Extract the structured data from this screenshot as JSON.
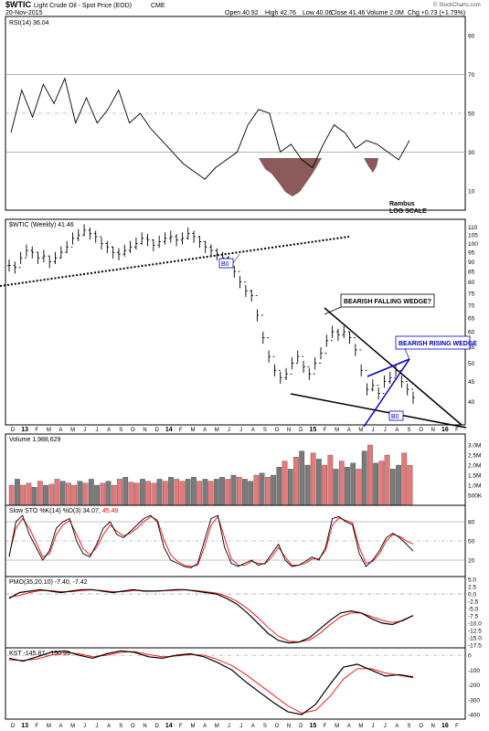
{
  "header": {
    "symbol": "$WTIC",
    "name": "Light Crude Oil - Spot Price (EOD)",
    "exchange": "CME",
    "date": "20-Nov-2015",
    "open": "Open 40.92",
    "high": "High 42.76",
    "low": "Low 40.06",
    "close": "Close 41.46",
    "volume": "Volume 2.0M",
    "change": "Chg +0.73 (+1.79%)",
    "credit": "© StockCharts.com"
  },
  "colors": {
    "accent_blue": "#0000cc",
    "signal_red": "#ff0000",
    "up_volume": "#e6787a",
    "down_volume": "#7a7a7a",
    "rsi_fill": "#8b5a5a",
    "grid": "#999999"
  },
  "chart_data": [
    {
      "type": "line",
      "panel": "rsi",
      "title": "RSI(14) 36.04",
      "y_ticks": [
        90,
        70,
        50,
        30,
        10
      ],
      "ylim": [
        0,
        100
      ],
      "reference_lines": [
        70,
        50,
        30
      ],
      "annotation": [
        "Rambus",
        "LOG SCALE"
      ],
      "x": [
        0,
        4,
        8,
        12,
        16,
        20,
        24,
        28,
        32,
        36,
        40,
        44,
        48,
        52,
        56,
        60,
        64,
        68,
        72,
        76,
        80,
        84,
        88,
        92,
        96,
        100,
        104,
        108,
        112,
        116,
        120,
        124,
        128,
        132,
        136,
        140,
        144,
        148
      ],
      "values": [
        40,
        62,
        48,
        65,
        55,
        68,
        45,
        58,
        45,
        52,
        62,
        45,
        50,
        42,
        36,
        30,
        24,
        20,
        16,
        22,
        26,
        30,
        44,
        52,
        50,
        30,
        34,
        26,
        22,
        34,
        44,
        40,
        32,
        36,
        34,
        30,
        26,
        36
      ]
    },
    {
      "type": "ohlc",
      "panel": "price",
      "title": "$WTIC (Weekly) 41.46",
      "scale": "log",
      "y_ticks": [
        110,
        105,
        100,
        95,
        90,
        85,
        80,
        75,
        70,
        65,
        60,
        55,
        50,
        45,
        40
      ],
      "ylim": [
        35,
        115
      ],
      "x_ticks": [
        "D",
        "13",
        "F",
        "M",
        "A",
        "M",
        "J",
        "J",
        "A",
        "S",
        "O",
        "N",
        "D",
        "14",
        "F",
        "M",
        "A",
        "M",
        "J",
        "J",
        "A",
        "S",
        "O",
        "N",
        "D",
        "15",
        "F",
        "M",
        "A",
        "M",
        "J",
        "J",
        "A",
        "S",
        "O",
        "N",
        "16",
        "F"
      ],
      "close": [
        88,
        87,
        92,
        96,
        95,
        92,
        93,
        90,
        92,
        95,
        98,
        103,
        105,
        108,
        106,
        104,
        100,
        98,
        95,
        94,
        96,
        98,
        100,
        103,
        102,
        99,
        101,
        103,
        104,
        102,
        103,
        106,
        104,
        101,
        98,
        96,
        94,
        92,
        90,
        85,
        80,
        76,
        74,
        66,
        58,
        52,
        48,
        46,
        47,
        50,
        52,
        49,
        47,
        50,
        53,
        57,
        60,
        59,
        60,
        58,
        54,
        48,
        43,
        44,
        42,
        45,
        46,
        48,
        45,
        43,
        41
      ],
      "annotations": [
        {
          "text": "B0",
          "color": "#0000cc"
        },
        {
          "text": "BEARISH FALLING WEDGE?",
          "color": "#000000"
        },
        {
          "text": "BEARISH RISING WEDGE",
          "color": "#0000cc"
        },
        {
          "text": "B0",
          "color": "#0000cc"
        }
      ]
    },
    {
      "type": "bar",
      "panel": "volume",
      "title": "Volume 1,988,629",
      "y_ticks": [
        "3.0M",
        "2.5M",
        "2.0M",
        "1.5M",
        "1.0M",
        "500K"
      ],
      "ylim": [
        0,
        3000000
      ],
      "values": [
        1000000,
        1300000,
        1000000,
        1100000,
        900000,
        1200000,
        1000000,
        1050000,
        1300000,
        1200000,
        1100000,
        1000000,
        1200000,
        1100000,
        1300000,
        1000000,
        1100000,
        1200000,
        1000000,
        1300000,
        1400000,
        1150000,
        1100000,
        1300000,
        1200000,
        1100000,
        1300000,
        1200000,
        1400000,
        1300000,
        1200000,
        1300000,
        1400000,
        1200000,
        1300000,
        1200000,
        1300000,
        1400000,
        1300000,
        1500000,
        1400000,
        1300000,
        1200000,
        1500000,
        1600000,
        1400000,
        1500000,
        1900000,
        2200000,
        1800000,
        2400000,
        2700000,
        2000000,
        2600000,
        2300000,
        2000000,
        2500000,
        1800000,
        2200000,
        1900000,
        2100000,
        1800000,
        2700000,
        3000000,
        2100000,
        2200000,
        2500000,
        1800000,
        2000000,
        2600000,
        1990000
      ],
      "up": [
        true,
        false,
        true,
        true,
        false,
        true,
        false,
        true,
        true,
        false,
        true,
        true,
        false,
        true,
        false,
        false,
        true,
        false,
        true,
        true,
        false,
        true,
        true,
        false,
        true,
        true,
        false,
        true,
        false,
        true,
        true,
        false,
        false,
        true,
        false,
        true,
        false,
        false,
        true,
        false,
        true,
        false,
        false,
        true,
        false,
        true,
        false,
        false,
        true,
        false,
        true,
        false,
        false,
        true,
        false,
        true,
        true,
        false,
        true,
        false,
        false,
        true,
        false,
        true,
        false,
        true,
        true,
        false,
        false,
        true,
        true
      ]
    },
    {
      "type": "line",
      "panel": "sto",
      "title": "Slow STO %K(14) %D(3) 34.07, 45.48",
      "y_ticks": [
        80,
        50,
        20
      ],
      "ylim": [
        0,
        100
      ],
      "series": [
        {
          "name": "%K(14)",
          "color": "#000000",
          "values": [
            25,
            80,
            90,
            60,
            40,
            20,
            35,
            70,
            80,
            85,
            50,
            30,
            25,
            45,
            70,
            80,
            60,
            55,
            65,
            75,
            85,
            90,
            80,
            40,
            20,
            15,
            10,
            8,
            15,
            50,
            85,
            90,
            40,
            15,
            10,
            15,
            20,
            12,
            15,
            30,
            45,
            20,
            10,
            12,
            18,
            25,
            20,
            40,
            85,
            88,
            80,
            75,
            30,
            10,
            20,
            35,
            55,
            62,
            55,
            45,
            34
          ]
        },
        {
          "name": "%D(3)",
          "color": "#ff0000",
          "values": [
            28,
            70,
            85,
            70,
            48,
            25,
            30,
            60,
            75,
            82,
            60,
            38,
            28,
            40,
            60,
            75,
            65,
            58,
            62,
            70,
            80,
            88,
            83,
            52,
            28,
            18,
            12,
            10,
            12,
            40,
            75,
            88,
            55,
            22,
            12,
            12,
            18,
            15,
            14,
            25,
            40,
            25,
            12,
            12,
            15,
            22,
            22,
            35,
            75,
            86,
            82,
            78,
            40,
            15,
            18,
            30,
            50,
            60,
            57,
            50,
            45
          ]
        }
      ]
    },
    {
      "type": "line",
      "panel": "pmo",
      "title": "PMO(35,20,10) -7.40, -7.42",
      "y_ticks": [
        5.0,
        2.5,
        0.0,
        -2.5,
        -5.0,
        -7.5,
        -10.0,
        -12.5,
        -15.0,
        -17.5
      ],
      "ylim": [
        -18.5,
        6
      ],
      "series": [
        {
          "name": "PMO(35,20,10)",
          "color": "#000000",
          "values": [
            -1.5,
            0.5,
            1.0,
            1.5,
            1.0,
            0.5,
            1.0,
            1.5,
            1.5,
            1.0,
            0.5,
            1.0,
            1.5,
            1.0,
            1.0,
            1.2,
            1.5,
            1.5,
            1.0,
            0.5,
            0.0,
            -1.5,
            -3.5,
            -6.5,
            -10.0,
            -13.5,
            -16.0,
            -16.8,
            -16.5,
            -15.0,
            -12.0,
            -9.0,
            -6.5,
            -5.8,
            -6.5,
            -8.5,
            -10.0,
            -10.5,
            -9.0,
            -7.4
          ]
        },
        {
          "name": "Signal(10)",
          "color": "#ff0000",
          "values": [
            -1.0,
            -0.5,
            0.5,
            1.2,
            1.2,
            0.8,
            0.8,
            1.2,
            1.4,
            1.2,
            0.8,
            0.8,
            1.2,
            1.2,
            1.0,
            1.1,
            1.3,
            1.4,
            1.2,
            0.8,
            0.3,
            -0.8,
            -2.5,
            -5.0,
            -8.0,
            -11.5,
            -14.5,
            -16.2,
            -16.5,
            -15.8,
            -13.5,
            -10.5,
            -7.8,
            -6.5,
            -6.5,
            -7.8,
            -9.0,
            -9.8,
            -9.2,
            -7.42
          ]
        }
      ]
    },
    {
      "type": "line",
      "panel": "kst",
      "title": "KST -145.87, -150.93",
      "y_ticks": [
        0,
        -100,
        -200,
        -300,
        -400
      ],
      "ylim": [
        -430,
        50
      ],
      "series": [
        {
          "name": "KST",
          "color": "#000000",
          "values": [
            -20,
            -40,
            -10,
            20,
            30,
            0,
            -20,
            10,
            30,
            20,
            -10,
            -20,
            0,
            10,
            -10,
            -50,
            -100,
            -180,
            -250,
            -320,
            -380,
            -400,
            -330,
            -200,
            -80,
            -60,
            -100,
            -140,
            -130,
            -146
          ]
        },
        {
          "name": "Signal",
          "color": "#ff0000",
          "values": [
            -30,
            -35,
            -25,
            0,
            20,
            10,
            -10,
            0,
            20,
            25,
            5,
            -10,
            -5,
            5,
            0,
            -30,
            -70,
            -130,
            -200,
            -270,
            -340,
            -390,
            -370,
            -280,
            -160,
            -90,
            -90,
            -120,
            -135,
            -151
          ]
        }
      ]
    }
  ]
}
